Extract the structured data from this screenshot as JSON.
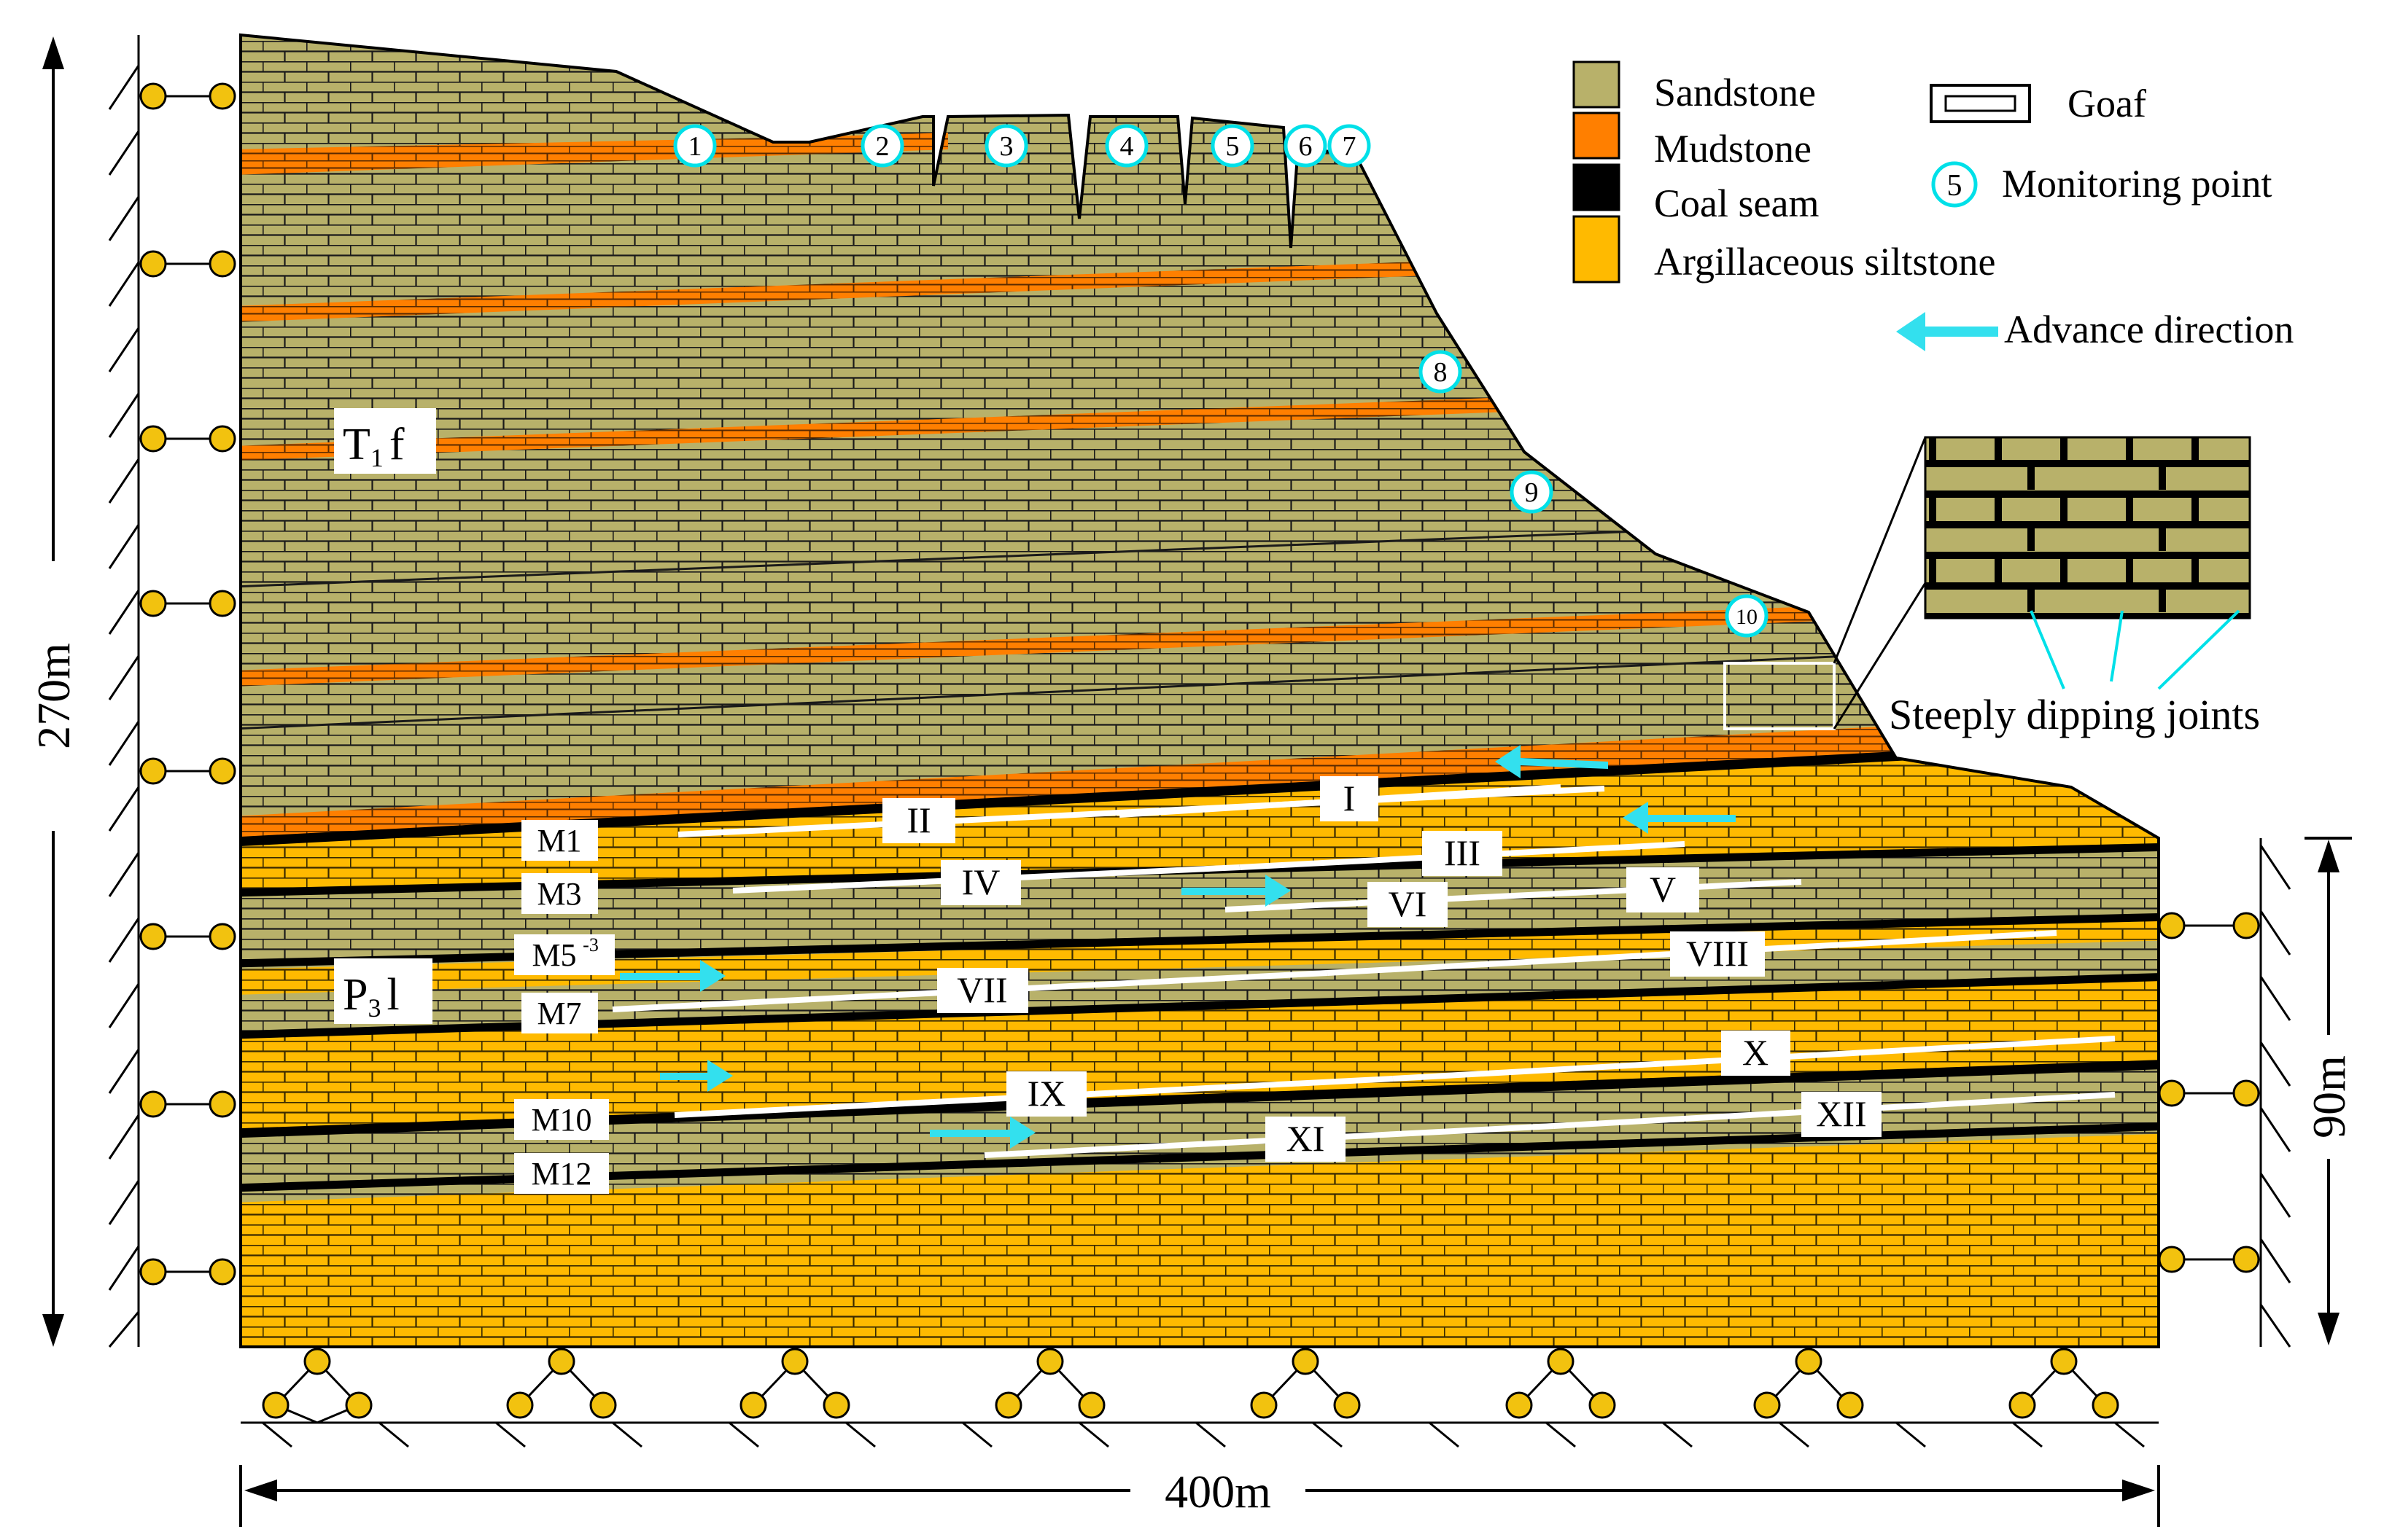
{
  "colors": {
    "sandstone": "#b8b16a",
    "mudstone": "#ff7f00",
    "coal_seam": "#000000",
    "argillaceous_siltstone": "#ffba00",
    "monitor_ring": "#00e0e8",
    "advance_arrow": "#33e0ee",
    "support_ball": "#f2c20f",
    "goaf": "#ffffff"
  },
  "legend": {
    "items": [
      {
        "key": "sandstone",
        "label": "Sandstone"
      },
      {
        "key": "mudstone",
        "label": "Mudstone"
      },
      {
        "key": "coal_seam",
        "label": "Coal seam"
      },
      {
        "key": "argillaceous_siltstone",
        "label": "Argillaceous siltstone"
      }
    ],
    "goaf_label": "Goaf",
    "monitor_label": "Monitoring point",
    "monitor_sample": "5",
    "advance_label": "Advance direction"
  },
  "dimensions": {
    "height_total": "270m",
    "height_right": "90m",
    "width": "400m"
  },
  "formations": {
    "upper": {
      "main": "T",
      "sub": "1",
      "suffix": "f"
    },
    "lower": {
      "main": "P",
      "sub": "3",
      "suffix": "l"
    }
  },
  "coal_seams": [
    "M1",
    "M3",
    "M5",
    "M7",
    "M10",
    "M12"
  ],
  "coal_seam_sup": "-3",
  "working_faces": [
    "I",
    "II",
    "III",
    "IV",
    "V",
    "VI",
    "VII",
    "VIII",
    "IX",
    "X",
    "XI",
    "XII"
  ],
  "monitoring_points": [
    "1",
    "2",
    "3",
    "4",
    "5",
    "6",
    "7",
    "8",
    "9",
    "10"
  ],
  "detail": {
    "label": "Steeply dipping joints"
  }
}
